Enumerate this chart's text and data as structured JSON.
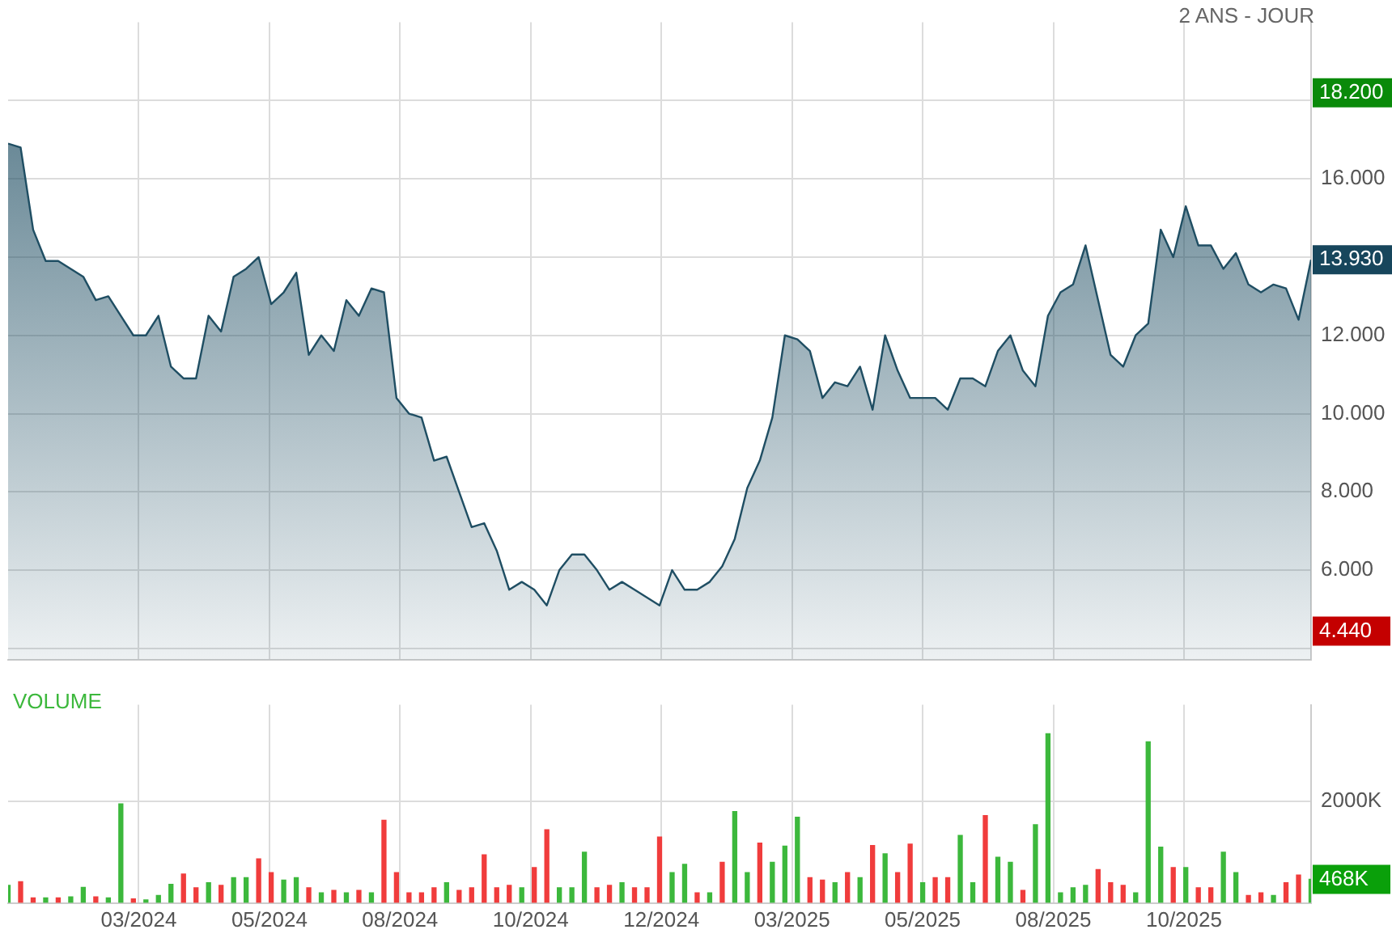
{
  "chart_data": [
    {
      "type": "area",
      "subtitle": "2 ANS - JOUR",
      "tick_labels": "y",
      "grid": true,
      "x": [
        "2023-12-30",
        "2024-01-06",
        "2024-01-13",
        "2024-01-20",
        "2024-01-27",
        "2024-02-03",
        "2024-02-10",
        "2024-02-17",
        "2024-02-24",
        "2024-03-02",
        "2024-03-09",
        "2024-03-16",
        "2024-03-23",
        "2024-03-30",
        "2024-04-06",
        "2024-04-13",
        "2024-04-20",
        "2024-04-27",
        "2024-05-04",
        "2024-05-11",
        "2024-05-18",
        "2024-05-25",
        "2024-06-01",
        "2024-06-08",
        "2024-06-15",
        "2024-06-22",
        "2024-06-29",
        "2024-07-06",
        "2024-07-13",
        "2024-07-20",
        "2024-07-27",
        "2024-08-03",
        "2024-08-10",
        "2024-08-17",
        "2024-08-24",
        "2024-08-31",
        "2024-09-07",
        "2024-09-14",
        "2024-09-21",
        "2024-09-28",
        "2024-10-05",
        "2024-10-12",
        "2024-10-19",
        "2024-10-26",
        "2024-11-02",
        "2024-11-09",
        "2024-11-16",
        "2024-11-23",
        "2024-11-30",
        "2024-12-07",
        "2024-12-14",
        "2024-12-21",
        "2024-12-28",
        "2025-01-04",
        "2025-01-11",
        "2025-01-18",
        "2025-01-25",
        "2025-02-01",
        "2025-02-08",
        "2025-02-15",
        "2025-02-22",
        "2025-03-01",
        "2025-03-08",
        "2025-03-15",
        "2025-03-22",
        "2025-03-29",
        "2025-04-05",
        "2025-04-12",
        "2025-04-19",
        "2025-04-26",
        "2025-05-03",
        "2025-05-10",
        "2025-05-17",
        "2025-05-24",
        "2025-05-31",
        "2025-06-07",
        "2025-06-14",
        "2025-06-21",
        "2025-06-28",
        "2025-07-05",
        "2025-07-12",
        "2025-07-19",
        "2025-07-26",
        "2025-08-02",
        "2025-08-09",
        "2025-08-16",
        "2025-08-23",
        "2025-08-30",
        "2025-09-06",
        "2025-09-13",
        "2025-09-20",
        "2025-09-27",
        "2025-10-04",
        "2025-10-11",
        "2025-10-18",
        "2025-10-25",
        "2025-11-01",
        "2025-11-08",
        "2025-11-15",
        "2025-11-22",
        "2025-11-29",
        "2025-12-06",
        "2025-12-13",
        "2025-12-20",
        "2025-12-27"
      ],
      "series": [
        {
          "color": "#1f4e63",
          "values": [
            16.9,
            16.8,
            14.7,
            13.9,
            13.9,
            13.7,
            13.5,
            12.9,
            13.0,
            12.5,
            12.0,
            12.0,
            12.5,
            11.2,
            10.9,
            10.9,
            12.5,
            12.1,
            13.5,
            13.7,
            14.0,
            12.8,
            13.1,
            13.6,
            11.5,
            12.0,
            11.6,
            12.9,
            12.5,
            13.2,
            13.1,
            10.4,
            10.0,
            9.9,
            8.8,
            8.9,
            8.0,
            7.1,
            7.2,
            6.5,
            5.5,
            5.7,
            5.5,
            5.1,
            6.0,
            6.4,
            6.4,
            6.0,
            5.5,
            5.7,
            5.5,
            5.3,
            5.1,
            6.0,
            5.5,
            5.5,
            5.7,
            6.1,
            6.8,
            8.1,
            8.8,
            9.9,
            12.0,
            11.9,
            11.6,
            10.4,
            10.8,
            10.7,
            11.2,
            10.1,
            12.0,
            11.1,
            10.4,
            10.4,
            10.4,
            10.1,
            10.9,
            10.9,
            10.7,
            11.6,
            12.0,
            11.1,
            10.7,
            12.5,
            13.1,
            13.3,
            14.3,
            12.9,
            11.5,
            11.2,
            12.0,
            12.3,
            14.7,
            14.0,
            15.3,
            14.3,
            14.3,
            13.7,
            14.1,
            13.3,
            13.1,
            13.3,
            13.2,
            12.4,
            13.93
          ]
        }
      ],
      "xlim": [
        "2023-12-30",
        "2025-12-27"
      ],
      "xticks": [
        {
          "value": "2024-03-12",
          "label": null
        },
        {
          "value": "2024-05-24",
          "label": null
        },
        {
          "value": "2024-08-05",
          "label": null
        },
        {
          "value": "2024-10-17",
          "label": null
        },
        {
          "value": "2024-12-29",
          "label": null
        },
        {
          "value": "2025-03-12",
          "label": null
        },
        {
          "value": "2025-05-24",
          "label": null
        },
        {
          "value": "2025-08-05",
          "label": null
        },
        {
          "value": "2025-10-17",
          "label": null
        }
      ],
      "ylim": [
        3.7,
        20
      ],
      "yticks": [
        {
          "value": 4,
          "label": null
        },
        {
          "value": 6,
          "label": "6.000"
        },
        {
          "value": 8,
          "label": "8.000"
        },
        {
          "value": 10,
          "label": "10.000"
        },
        {
          "value": 12,
          "label": "12.000"
        },
        {
          "value": 14,
          "label": null
        },
        {
          "value": 16,
          "label": "16.000"
        },
        {
          "value": 18,
          "label": null
        }
      ],
      "y2lim": [
        3.7,
        20
      ],
      "y2ticks": [
        {
          "value": 18.2,
          "label": "18.200"
        },
        {
          "value": 13.93,
          "label": "13.930"
        },
        {
          "value": 4.44,
          "label": "4.440"
        }
      ]
    },
    {
      "type": "bar",
      "title": "VOLUME",
      "grid": true,
      "x": [
        "2023-12-30",
        "2024-01-06",
        "2024-01-13",
        "2024-01-20",
        "2024-01-27",
        "2024-02-03",
        "2024-02-10",
        "2024-02-17",
        "2024-02-24",
        "2024-03-02",
        "2024-03-09",
        "2024-03-16",
        "2024-03-23",
        "2024-03-30",
        "2024-04-06",
        "2024-04-13",
        "2024-04-20",
        "2024-04-27",
        "2024-05-04",
        "2024-05-11",
        "2024-05-18",
        "2024-05-25",
        "2024-06-01",
        "2024-06-08",
        "2024-06-15",
        "2024-06-22",
        "2024-06-29",
        "2024-07-06",
        "2024-07-13",
        "2024-07-20",
        "2024-07-27",
        "2024-08-03",
        "2024-08-10",
        "2024-08-17",
        "2024-08-24",
        "2024-08-31",
        "2024-09-07",
        "2024-09-14",
        "2024-09-21",
        "2024-09-28",
        "2024-10-05",
        "2024-10-12",
        "2024-10-19",
        "2024-10-26",
        "2024-11-02",
        "2024-11-09",
        "2024-11-16",
        "2024-11-23",
        "2024-11-30",
        "2024-12-07",
        "2024-12-14",
        "2024-12-21",
        "2024-12-28",
        "2025-01-04",
        "2025-01-11",
        "2025-01-18",
        "2025-01-25",
        "2025-02-01",
        "2025-02-08",
        "2025-02-15",
        "2025-02-22",
        "2025-03-01",
        "2025-03-08",
        "2025-03-15",
        "2025-03-22",
        "2025-03-29",
        "2025-04-05",
        "2025-04-12",
        "2025-04-19",
        "2025-04-26",
        "2025-05-03",
        "2025-05-10",
        "2025-05-17",
        "2025-05-24",
        "2025-05-31",
        "2025-06-07",
        "2025-06-14",
        "2025-06-21",
        "2025-06-28",
        "2025-07-05",
        "2025-07-12",
        "2025-07-19",
        "2025-07-26",
        "2025-08-02",
        "2025-08-09",
        "2025-08-16",
        "2025-08-23",
        "2025-08-30",
        "2025-09-06",
        "2025-09-13",
        "2025-09-20",
        "2025-09-27",
        "2025-10-04",
        "2025-10-11",
        "2025-10-18",
        "2025-10-25",
        "2025-11-01",
        "2025-11-08",
        "2025-11-15",
        "2025-11-22",
        "2025-11-29",
        "2025-12-06",
        "2025-12-13",
        "2025-12-20",
        "2025-12-27"
      ],
      "values": [
        350,
        420,
        100,
        100,
        100,
        120,
        310,
        120,
        100,
        1950,
        80,
        60,
        150,
        370,
        570,
        300,
        400,
        350,
        500,
        500,
        870,
        600,
        450,
        500,
        300,
        200,
        250,
        200,
        250,
        200,
        1630,
        600,
        200,
        200,
        300,
        400,
        250,
        300,
        950,
        300,
        350,
        300,
        700,
        1440,
        300,
        300,
        1000,
        300,
        350,
        400,
        300,
        300,
        1300,
        600,
        760,
        200,
        200,
        800,
        1800,
        600,
        1180,
        800,
        1120,
        1690,
        500,
        450,
        400,
        600,
        500,
        1130,
        970,
        600,
        1160,
        400,
        500,
        500,
        1330,
        400,
        1720,
        900,
        800,
        250,
        1540,
        3330,
        200,
        300,
        350,
        660,
        400,
        350,
        200,
        3170,
        1100,
        700,
        700,
        300,
        300,
        1000,
        600,
        150,
        200,
        150,
        400,
        550,
        468
      ],
      "colors": [
        "#3cb83c",
        "#f03c3c",
        "#f03c3c",
        "#3cb83c",
        "#f03c3c",
        "#3cb83c",
        "#3cb83c",
        "#f03c3c",
        "#3cb83c",
        "#3cb83c",
        "#f03c3c",
        "#3cb83c",
        "#3cb83c",
        "#3cb83c",
        "#f03c3c",
        "#f03c3c",
        "#3cb83c",
        "#f03c3c",
        "#3cb83c",
        "#3cb83c",
        "#f03c3c",
        "#f03c3c",
        "#3cb83c",
        "#3cb83c",
        "#f03c3c",
        "#3cb83c",
        "#f03c3c",
        "#3cb83c",
        "#f03c3c",
        "#3cb83c",
        "#f03c3c",
        "#f03c3c",
        "#f03c3c",
        "#f03c3c",
        "#f03c3c",
        "#3cb83c",
        "#f03c3c",
        "#f03c3c",
        "#f03c3c",
        "#f03c3c",
        "#f03c3c",
        "#3cb83c",
        "#f03c3c",
        "#f03c3c",
        "#3cb83c",
        "#3cb83c",
        "#3cb83c",
        "#f03c3c",
        "#f03c3c",
        "#3cb83c",
        "#f03c3c",
        "#f03c3c",
        "#f03c3c",
        "#3cb83c",
        "#3cb83c",
        "#f03c3c",
        "#3cb83c",
        "#f03c3c",
        "#3cb83c",
        "#3cb83c",
        "#f03c3c",
        "#3cb83c",
        "#3cb83c",
        "#3cb83c",
        "#f03c3c",
        "#f03c3c",
        "#3cb83c",
        "#f03c3c",
        "#3cb83c",
        "#f03c3c",
        "#3cb83c",
        "#f03c3c",
        "#f03c3c",
        "#3cb83c",
        "#f03c3c",
        "#f03c3c",
        "#3cb83c",
        "#3cb83c",
        "#f03c3c",
        "#3cb83c",
        "#3cb83c",
        "#f03c3c",
        "#3cb83c",
        "#3cb83c",
        "#3cb83c",
        "#3cb83c",
        "#3cb83c",
        "#f03c3c",
        "#f03c3c",
        "#f03c3c",
        "#3cb83c",
        "#3cb83c",
        "#3cb83c",
        "#f03c3c",
        "#3cb83c",
        "#f03c3c",
        "#f03c3c",
        "#3cb83c",
        "#3cb83c",
        "#f03c3c",
        "#f03c3c",
        "#3cb83c",
        "#f03c3c",
        "#f03c3c",
        "#3cb83c"
      ],
      "xlim": [
        "2023-12-30",
        "2025-12-27"
      ],
      "xticks": [
        {
          "value": "2024-03-12",
          "label": "03/2024"
        },
        {
          "value": "2024-05-24",
          "label": "05/2024"
        },
        {
          "value": "2024-08-05",
          "label": "08/2024"
        },
        {
          "value": "2024-10-17",
          "label": "10/2024"
        },
        {
          "value": "2024-12-29",
          "label": "12/2024"
        },
        {
          "value": "2025-03-12",
          "label": "03/2025"
        },
        {
          "value": "2025-05-24",
          "label": "05/2025"
        },
        {
          "value": "2025-08-05",
          "label": "08/2025"
        },
        {
          "value": "2025-10-17",
          "label": "10/2025"
        }
      ],
      "ylim": [
        0,
        3900
      ],
      "yticks": [
        {
          "value": 0,
          "label": null
        },
        {
          "value": 2000,
          "label": "2000K"
        }
      ],
      "annotations": [
        {
          "text": "468K",
          "x": "2025-12-27",
          "y": 468
        }
      ]
    }
  ]
}
